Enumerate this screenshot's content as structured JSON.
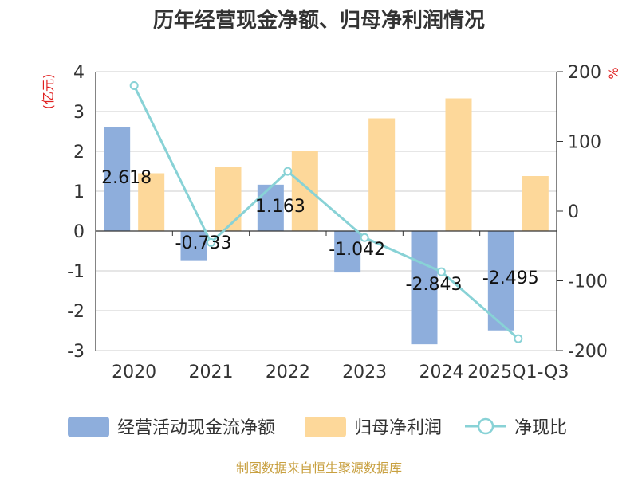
{
  "chart_data": {
    "type": "bar",
    "title": "历年经营现金净额、归母净利润情况",
    "categories": [
      "2020",
      "2021",
      "2022",
      "2023",
      "2024",
      "2025Q1-Q3"
    ],
    "left_axis": {
      "unit": "(亿元)",
      "ylim": [
        -3,
        4
      ],
      "ticks": [
        "4",
        "3",
        "2",
        "1",
        "0",
        "-1",
        "-2",
        "-3"
      ]
    },
    "right_axis": {
      "unit": "%",
      "ylim": [
        -200,
        200
      ],
      "ticks": [
        "200",
        "100",
        "0",
        "-100",
        "-200"
      ]
    },
    "series": [
      {
        "name": "经营活动现金流净额",
        "kind": "bar",
        "axis": "left",
        "color": "#8eaedc",
        "values": [
          2.618,
          -0.733,
          1.163,
          -1.042,
          -2.843,
          -2.495
        ],
        "labels": [
          "2.618",
          "-0.733",
          "1.163",
          "-1.042",
          "-2.843",
          "-2.495"
        ]
      },
      {
        "name": "归母净利润",
        "kind": "bar",
        "axis": "left",
        "color": "#fdd89a",
        "values": [
          1.45,
          1.6,
          2.02,
          2.83,
          3.33,
          1.38
        ]
      },
      {
        "name": "净现比",
        "kind": "line",
        "axis": "right",
        "color": "#88d2d6",
        "values": [
          180,
          -45,
          57,
          -38,
          -87,
          -183
        ]
      }
    ],
    "grid": true,
    "legend_position": "bottom"
  },
  "source": "制图数据来自恒生聚源数据库"
}
